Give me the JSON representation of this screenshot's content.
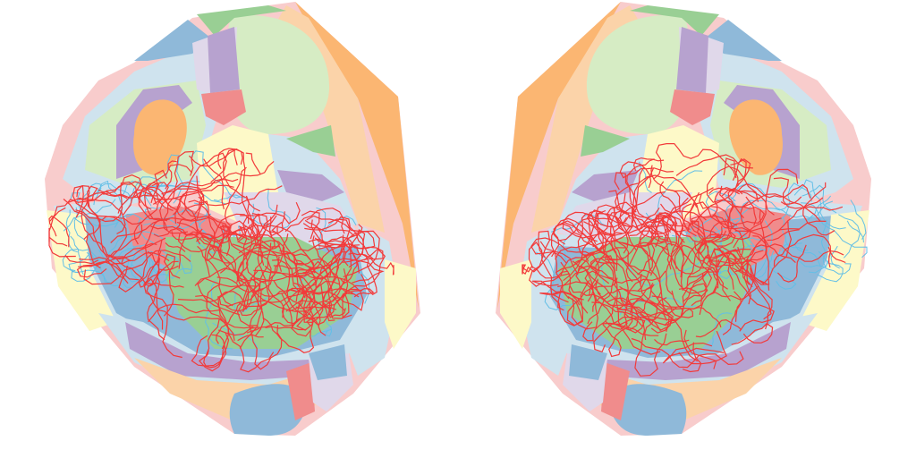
{
  "figure": {
    "palette": {
      "background": "#ffffff",
      "pink": "#f8cccc",
      "salmon": "#f08c8c",
      "peach": "#fbd3a9",
      "orange": "#fbb672",
      "light_green": "#d6ecc4",
      "green": "#99cf94",
      "light_blue": "#cfe3ee",
      "blue": "#8fb9d9",
      "lavender": "#e0d8ea",
      "purple": "#b7a2cf",
      "cream": "#fdf9c8",
      "trace_red": "#f23a3a",
      "trace_cyan": "#63bfe6"
    },
    "panels": [
      {
        "id": "left-hemisphere",
        "mirrored": false,
        "seed": 17
      },
      {
        "id": "right-hemisphere",
        "mirrored": true,
        "seed": 53
      }
    ]
  }
}
